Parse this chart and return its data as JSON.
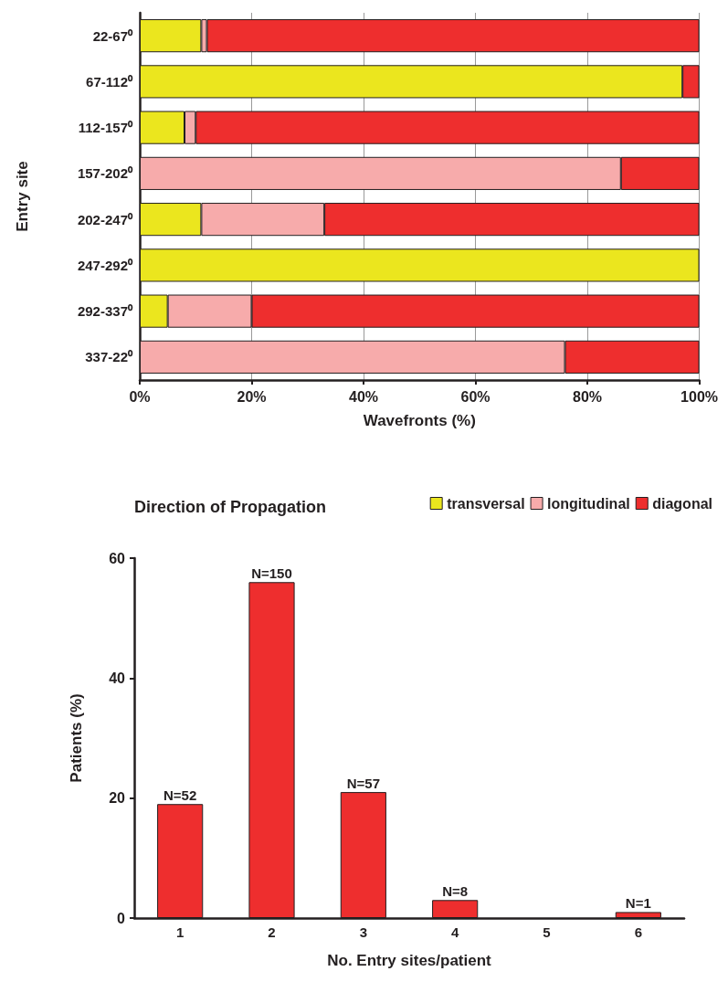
{
  "chart_data": [
    {
      "type": "bar",
      "orientation": "horizontal",
      "stacked": true,
      "xlabel": "Wavefronts (%)",
      "ylabel": "Entry site",
      "legend_title": "Direction of Propagation",
      "legend": "bottom",
      "grid": "x",
      "categories": [
        "22-67⁰",
        "67-112⁰",
        "112-157⁰",
        "157-202⁰",
        "202-247⁰",
        "247-292⁰",
        "292-337⁰",
        "337-22⁰"
      ],
      "xlim": [
        0,
        100
      ],
      "xticks": [
        {
          "value": 0,
          "label": "0%"
        },
        {
          "value": 20,
          "label": "20%"
        },
        {
          "value": 40,
          "label": "40%"
        },
        {
          "value": 60,
          "label": "60%"
        },
        {
          "value": 80,
          "label": "80%"
        },
        {
          "value": 100,
          "label": "100%"
        }
      ],
      "series": [
        {
          "name": "transversal",
          "color": "#ebe61e",
          "values": [
            11,
            97,
            8,
            0,
            11,
            100,
            5,
            0
          ]
        },
        {
          "name": "longitudinal",
          "color": "#f7abab",
          "values": [
            1,
            0,
            2,
            86,
            22,
            0,
            15,
            76
          ]
        },
        {
          "name": "diagonal",
          "color": "#ee2e2e",
          "values": [
            88,
            3,
            90,
            14,
            67,
            0,
            80,
            24
          ]
        }
      ]
    },
    {
      "type": "bar",
      "xlabel": "No. Entry sites/patient",
      "ylabel": "Patients (%)",
      "color": "#ee2e2e",
      "categories": [
        "1",
        "2",
        "3",
        "4",
        "5",
        "6"
      ],
      "values": [
        19,
        56,
        21,
        3,
        0,
        1
      ],
      "annotations": [
        {
          "text": "N=52",
          "x": "1",
          "y": 19
        },
        {
          "text": "N=150",
          "x": "2",
          "y": 56
        },
        {
          "text": "N=57",
          "x": "3",
          "y": 21
        },
        {
          "text": "N=8",
          "x": "4",
          "y": 3
        },
        {
          "text": "N=1",
          "x": "6",
          "y": 1
        }
      ],
      "ylim": [
        0,
        60
      ],
      "yticks": [
        0,
        20,
        40,
        60
      ]
    }
  ]
}
